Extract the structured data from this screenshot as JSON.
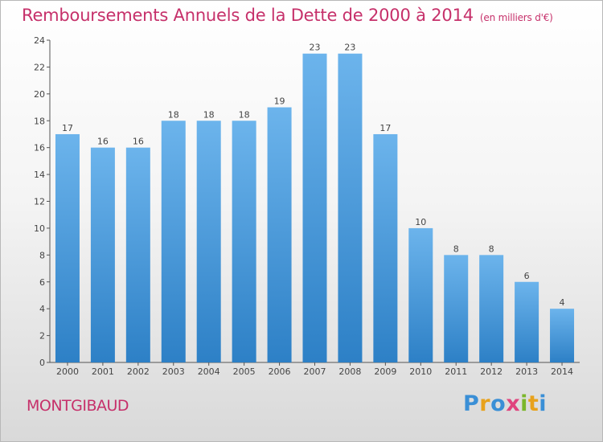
{
  "header": {
    "title": "Remboursements Annuels de la Dette de 2000 à 2014",
    "unit": "(en milliers d'€)"
  },
  "footer": {
    "commune": "MONTGIBAUD",
    "brand": {
      "letters": [
        "P",
        "r",
        "o",
        "x",
        "i",
        "t",
        "i"
      ],
      "colors": [
        "#3a8fd6",
        "#e8a21c",
        "#3a8fd6",
        "#e0447e",
        "#7bb72b",
        "#e8a21c",
        "#3a8fd6"
      ]
    }
  },
  "colors": {
    "bar_light": "#6cb4ec",
    "bar_dark": "#2d80c6",
    "axis": "#555555",
    "grid": "#e5e5e5",
    "label": "#444444"
  },
  "chart_data": {
    "type": "bar",
    "title": "Remboursements Annuels de la Dette de 2000 à 2014",
    "categories": [
      "2000",
      "2001",
      "2002",
      "2003",
      "2004",
      "2005",
      "2006",
      "2007",
      "2008",
      "2009",
      "2010",
      "2011",
      "2012",
      "2013",
      "2014"
    ],
    "values": [
      17,
      16,
      16,
      18,
      18,
      18,
      19,
      23,
      23,
      17,
      10,
      8,
      8,
      6,
      4
    ],
    "ylim": [
      0,
      24
    ],
    "yticks": [
      0,
      2,
      4,
      6,
      8,
      10,
      12,
      14,
      16,
      18,
      20,
      22,
      24
    ],
    "grid": false,
    "data_labels": true
  }
}
